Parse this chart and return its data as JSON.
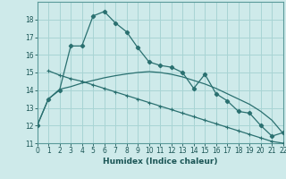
{
  "xlabel": "Humidex (Indice chaleur)",
  "bg_color": "#ceeaea",
  "grid_color": "#a8d4d4",
  "line_color": "#2a7070",
  "ylim": [
    11,
    19
  ],
  "xlim": [
    0,
    22
  ],
  "yticks": [
    11,
    12,
    13,
    14,
    15,
    16,
    17,
    18
  ],
  "xticks": [
    0,
    1,
    2,
    3,
    4,
    5,
    6,
    7,
    8,
    9,
    10,
    11,
    12,
    13,
    14,
    15,
    16,
    17,
    18,
    19,
    20,
    21,
    22
  ],
  "line1_x": [
    0,
    1,
    2,
    3,
    4,
    5,
    6,
    7,
    8,
    9,
    10,
    11,
    12,
    13,
    14,
    15,
    16,
    17,
    18,
    19,
    20,
    21,
    22
  ],
  "line1_y": [
    12.0,
    13.5,
    14.0,
    16.5,
    16.5,
    18.2,
    18.45,
    17.8,
    17.3,
    16.4,
    15.6,
    15.4,
    15.3,
    15.0,
    14.1,
    14.9,
    13.8,
    13.4,
    12.8,
    12.7,
    12.0,
    11.4,
    11.6
  ],
  "line2_x": [
    1,
    2,
    3,
    4,
    5,
    6,
    7,
    8,
    9,
    10,
    11,
    12,
    13,
    14,
    15,
    16,
    17,
    18,
    19,
    20,
    21,
    22
  ],
  "line2_y": [
    15.1,
    14.85,
    14.65,
    14.5,
    14.3,
    14.1,
    13.9,
    13.7,
    13.5,
    13.3,
    13.1,
    12.9,
    12.7,
    12.5,
    12.3,
    12.1,
    11.9,
    11.7,
    11.5,
    11.3,
    11.1,
    11.0
  ],
  "line3_x": [
    0,
    1,
    2,
    3,
    4,
    5,
    6,
    7,
    8,
    9,
    10,
    11,
    12,
    13,
    14,
    15,
    16,
    17,
    18,
    19,
    20,
    21,
    22
  ],
  "line3_y": [
    12.0,
    13.5,
    14.05,
    14.2,
    14.4,
    14.55,
    14.7,
    14.82,
    14.92,
    15.0,
    15.05,
    15.0,
    14.9,
    14.75,
    14.55,
    14.35,
    14.1,
    13.8,
    13.5,
    13.2,
    12.8,
    12.3,
    11.55
  ]
}
